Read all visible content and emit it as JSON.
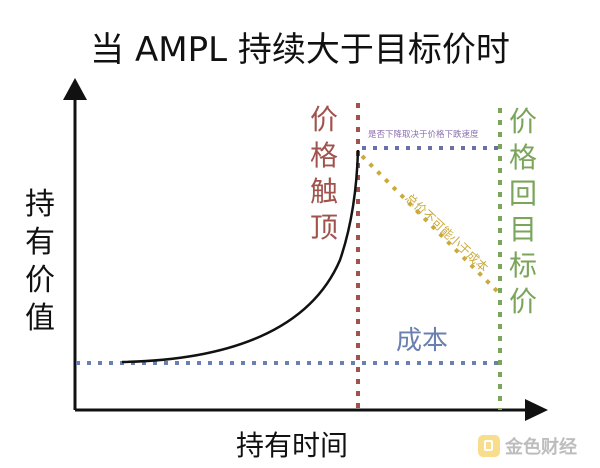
{
  "title": "当 AMPL 持续大于目标价时",
  "y_axis_label": [
    "持",
    "有",
    "价",
    "值"
  ],
  "x_axis_label": "持有时间",
  "peak_label": [
    "价",
    "格",
    "触",
    "顶"
  ],
  "return_label": [
    "价",
    "格",
    "回",
    "目",
    "标",
    "价"
  ],
  "cost_label": "成本",
  "top_note": "是否下降取决于价格下跌速度",
  "diagonal_note": "总价不可能小于成本",
  "watermark_text": "金色财经",
  "colors": {
    "peak_line": "#a0524d",
    "return_line": "#7aa55b",
    "cost_line": "#6a80b0",
    "top_line": "#6a70a8",
    "diagonal_line": "#c9aa3e",
    "curve": "#111111",
    "axis": "#111111"
  }
}
